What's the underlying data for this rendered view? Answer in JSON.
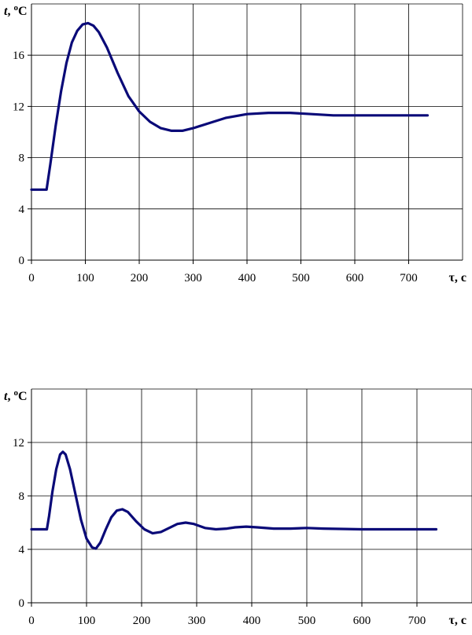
{
  "chart_data": [
    {
      "type": "line",
      "ylabel": {
        "var": "t",
        "rest": ", ",
        "sup": "o",
        "unit": "C"
      },
      "xlabel": "τ, c",
      "xlim": [
        0,
        800
      ],
      "ylim": [
        0,
        20
      ],
      "xticks": [
        0,
        100,
        200,
        300,
        400,
        500,
        600,
        700
      ],
      "yticks": [
        0,
        4,
        8,
        12,
        16
      ],
      "grid": true,
      "series": [
        {
          "color": "#0a0a78",
          "points": [
            [
              0,
              5.5
            ],
            [
              28,
              5.5
            ],
            [
              35,
              7.5
            ],
            [
              45,
              10.5
            ],
            [
              55,
              13.2
            ],
            [
              65,
              15.4
            ],
            [
              75,
              17.0
            ],
            [
              85,
              17.9
            ],
            [
              95,
              18.4
            ],
            [
              105,
              18.5
            ],
            [
              115,
              18.3
            ],
            [
              125,
              17.8
            ],
            [
              140,
              16.6
            ],
            [
              160,
              14.6
            ],
            [
              180,
              12.8
            ],
            [
              200,
              11.6
            ],
            [
              220,
              10.8
            ],
            [
              240,
              10.3
            ],
            [
              260,
              10.1
            ],
            [
              280,
              10.1
            ],
            [
              300,
              10.3
            ],
            [
              330,
              10.7
            ],
            [
              360,
              11.1
            ],
            [
              400,
              11.4
            ],
            [
              440,
              11.5
            ],
            [
              480,
              11.5
            ],
            [
              520,
              11.4
            ],
            [
              560,
              11.3
            ],
            [
              600,
              11.3
            ],
            [
              650,
              11.3
            ],
            [
              700,
              11.3
            ],
            [
              735,
              11.3
            ]
          ]
        }
      ]
    },
    {
      "type": "line",
      "ylabel": {
        "var": "t",
        "rest": ", ",
        "sup": "o",
        "unit": "C"
      },
      "xlabel": "τ, c",
      "xlim": [
        0,
        800
      ],
      "ylim": [
        0,
        16
      ],
      "xticks": [
        0,
        100,
        200,
        300,
        400,
        500,
        600,
        700
      ],
      "yticks": [
        0,
        4,
        8,
        12
      ],
      "grid": true,
      "series": [
        {
          "color": "#0a0a78",
          "points": [
            [
              0,
              5.5
            ],
            [
              28,
              5.5
            ],
            [
              32,
              6.5
            ],
            [
              38,
              8.3
            ],
            [
              45,
              10.0
            ],
            [
              52,
              11.1
            ],
            [
              57,
              11.3
            ],
            [
              62,
              11.1
            ],
            [
              70,
              10.0
            ],
            [
              80,
              8.1
            ],
            [
              90,
              6.2
            ],
            [
              100,
              4.8
            ],
            [
              110,
              4.15
            ],
            [
              117,
              4.05
            ],
            [
              125,
              4.5
            ],
            [
              135,
              5.5
            ],
            [
              145,
              6.4
            ],
            [
              155,
              6.9
            ],
            [
              165,
              7.0
            ],
            [
              175,
              6.8
            ],
            [
              190,
              6.1
            ],
            [
              205,
              5.5
            ],
            [
              220,
              5.2
            ],
            [
              235,
              5.3
            ],
            [
              250,
              5.6
            ],
            [
              265,
              5.9
            ],
            [
              280,
              6.0
            ],
            [
              295,
              5.9
            ],
            [
              315,
              5.6
            ],
            [
              335,
              5.5
            ],
            [
              355,
              5.55
            ],
            [
              370,
              5.65
            ],
            [
              390,
              5.7
            ],
            [
              410,
              5.65
            ],
            [
              440,
              5.55
            ],
            [
              470,
              5.55
            ],
            [
              500,
              5.6
            ],
            [
              530,
              5.55
            ],
            [
              600,
              5.5
            ],
            [
              700,
              5.5
            ],
            [
              735,
              5.5
            ]
          ]
        }
      ]
    }
  ]
}
